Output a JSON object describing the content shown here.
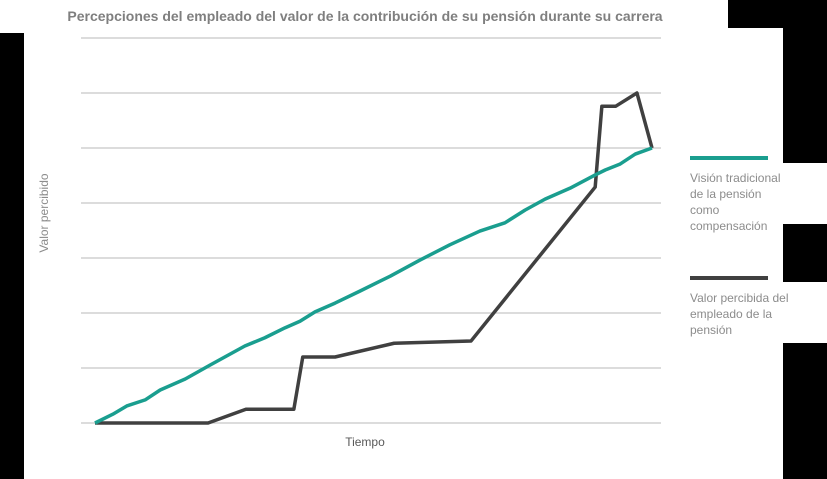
{
  "chart_data": {
    "type": "line",
    "title": "Percepciones del empleado del valor de la contribución de su pensión durante su carrera",
    "xlabel": "Tiempo",
    "ylabel": "Valor percibido",
    "xlim": [
      0,
      100
    ],
    "ylim": [
      0,
      7
    ],
    "grid": true,
    "legend_position": "right",
    "series": [
      {
        "name": "Visión tradicional de la pensión como compensación",
        "color": "#1a9e8f",
        "x": [
          0,
          3.2,
          5.7,
          9,
          11.7,
          16.2,
          20.6,
          26.9,
          30.5,
          34.1,
          36.8,
          39.5,
          43.1,
          47.6,
          53,
          58.3,
          63.7,
          69.1,
          73.6,
          77.2,
          80.8,
          85.3,
          89.8,
          91.6,
          94.3,
          97,
          100
        ],
        "y": [
          0,
          0.16,
          0.31,
          0.42,
          0.6,
          0.8,
          1.05,
          1.4,
          1.55,
          1.73,
          1.85,
          2.02,
          2.18,
          2.4,
          2.67,
          2.96,
          3.24,
          3.49,
          3.64,
          3.87,
          4.07,
          4.27,
          4.51,
          4.6,
          4.71,
          4.89,
          5
        ]
      },
      {
        "name": "Valor percibida del empleado de la pensión",
        "color": "#404040",
        "x": [
          0,
          20.3,
          27.1,
          35.7,
          37.3,
          43.1,
          53.7,
          67.5,
          89.8,
          91,
          93.5,
          97.3,
          100
        ],
        "y": [
          0,
          0,
          0.25,
          0.25,
          1.2,
          1.2,
          1.45,
          1.49,
          4.29,
          5.76,
          5.76,
          6,
          5
        ]
      }
    ]
  }
}
